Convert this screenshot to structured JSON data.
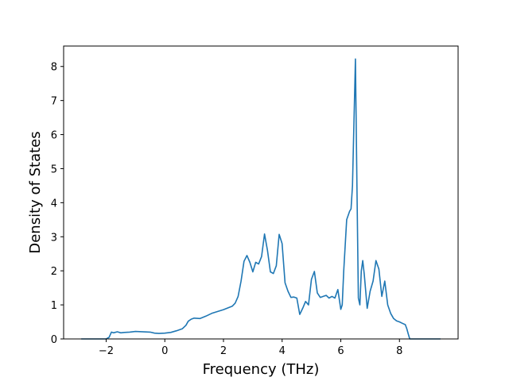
{
  "chart_data": {
    "type": "line",
    "title": "",
    "xlabel": "Frequency (THz)",
    "ylabel": "Density of States",
    "xlim": [
      -3.45,
      10.0
    ],
    "ylim": [
      0,
      8.6
    ],
    "xticks": [
      -2,
      0,
      2,
      4,
      6,
      8
    ],
    "yticks": [
      0,
      1,
      2,
      3,
      4,
      5,
      6,
      7,
      8
    ],
    "xtick_labels": [
      "−2",
      "0",
      "2",
      "4",
      "6",
      "8"
    ],
    "ytick_labels": [
      "0",
      "1",
      "2",
      "3",
      "4",
      "5",
      "6",
      "7",
      "8"
    ],
    "grid": false,
    "color": "#1f77b4",
    "series": [
      {
        "x": [
          -2.85,
          -2.0,
          -1.9,
          -1.82,
          -1.75,
          -1.62,
          -1.5,
          -1.38,
          -1.2,
          -1.0,
          -0.5,
          -0.35,
          -0.2,
          0.0,
          0.2,
          0.4,
          0.6,
          0.72,
          0.8,
          0.9,
          1.0,
          1.2,
          1.4,
          1.6,
          2.0,
          2.3,
          2.4,
          2.5,
          2.6,
          2.7,
          2.8,
          2.9,
          3.0,
          3.1,
          3.2,
          3.3,
          3.4,
          3.5,
          3.6,
          3.7,
          3.8,
          3.9,
          4.0,
          4.1,
          4.2,
          4.3,
          4.4,
          4.5,
          4.6,
          4.7,
          4.8,
          4.9,
          5.0,
          5.1,
          5.2,
          5.3,
          5.4,
          5.5,
          5.6,
          5.7,
          5.8,
          5.9,
          6.0,
          6.05,
          6.1,
          6.2,
          6.3,
          6.35,
          6.4,
          6.5,
          6.55,
          6.6,
          6.65,
          6.7,
          6.75,
          6.8,
          6.9,
          7.0,
          7.1,
          7.2,
          7.3,
          7.4,
          7.5,
          7.6,
          7.7,
          7.8,
          7.9,
          8.0,
          8.1,
          8.2,
          8.25,
          8.3,
          8.35,
          8.4,
          9.4
        ],
        "y": [
          0.0,
          0.0,
          0.05,
          0.2,
          0.18,
          0.21,
          0.18,
          0.19,
          0.2,
          0.22,
          0.2,
          0.17,
          0.16,
          0.17,
          0.19,
          0.24,
          0.3,
          0.4,
          0.52,
          0.58,
          0.61,
          0.6,
          0.67,
          0.75,
          0.86,
          0.96,
          1.05,
          1.25,
          1.7,
          2.28,
          2.45,
          2.25,
          1.97,
          2.25,
          2.2,
          2.42,
          3.08,
          2.6,
          1.97,
          1.92,
          2.15,
          3.07,
          2.8,
          1.65,
          1.4,
          1.22,
          1.23,
          1.2,
          0.72,
          0.9,
          1.1,
          1.0,
          1.75,
          1.98,
          1.35,
          1.22,
          1.25,
          1.28,
          1.2,
          1.25,
          1.2,
          1.45,
          0.87,
          1.0,
          2.0,
          3.5,
          3.75,
          3.82,
          4.5,
          8.22,
          4.5,
          1.2,
          1.0,
          2.0,
          2.3,
          1.9,
          0.9,
          1.4,
          1.7,
          2.3,
          2.05,
          1.25,
          1.7,
          1.0,
          0.75,
          0.6,
          0.53,
          0.5,
          0.46,
          0.42,
          0.3,
          0.15,
          0.0,
          0.0,
          0.0
        ]
      }
    ]
  }
}
